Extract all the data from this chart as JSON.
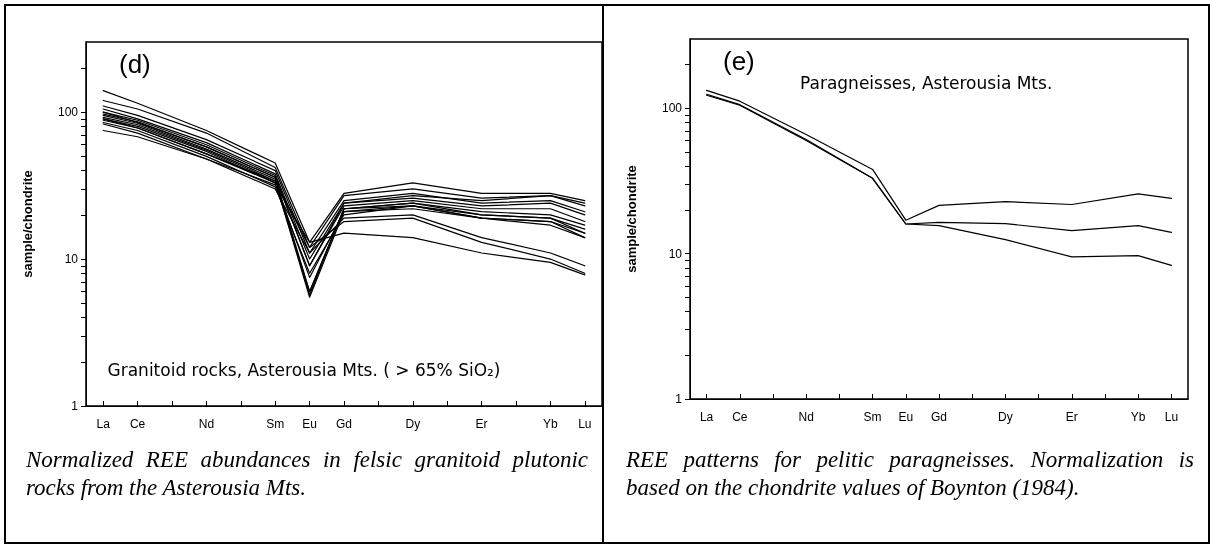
{
  "chart_data": [
    {
      "type": "line",
      "title": "(d)",
      "ylabel": "sample/chondrite",
      "annotations": [
        "Granitoid rocks, Asterousia Mts. ( > 65% SiO₂)",
        "Normalized REE abundances in felsic granitoid plutonic rocks from the Asterousia Mts."
      ],
      "categories": [
        "La",
        "Ce",
        null,
        "Nd",
        null,
        "Sm",
        "Eu",
        "Gd",
        null,
        "Dy",
        null,
        "Er",
        null,
        "Yb",
        "Lu"
      ],
      "ylim": [
        1,
        300
      ],
      "log": true,
      "yticks": [
        1,
        {
          "value": 2,
          "label": null
        },
        {
          "value": 3,
          "label": null
        },
        {
          "value": 4,
          "label": null
        },
        {
          "value": 5,
          "label": null
        },
        {
          "value": 6,
          "label": null
        },
        {
          "value": 7,
          "label": null
        },
        {
          "value": 8,
          "label": null
        },
        {
          "value": 9,
          "label": null
        },
        10,
        {
          "value": 20,
          "label": null
        },
        {
          "value": 30,
          "label": null
        },
        {
          "value": 40,
          "label": null
        },
        {
          "value": 50,
          "label": null
        },
        {
          "value": 60,
          "label": null
        },
        {
          "value": 70,
          "label": null
        },
        {
          "value": 80,
          "label": null
        },
        {
          "value": 90,
          "label": null
        },
        100,
        {
          "value": 200,
          "label": null
        }
      ],
      "grid": false,
      "marker": "none",
      "line_style": "solid",
      "series": [
        {
          "color": "#000000",
          "values": [
            140,
            115,
            null,
            75,
            null,
            45,
            13,
            28,
            null,
            33,
            null,
            28,
            null,
            28,
            25
          ]
        },
        {
          "color": "#000000",
          "values": [
            120,
            105,
            null,
            72,
            null,
            42,
            12,
            27,
            null,
            30,
            null,
            26,
            null,
            27,
            23
          ]
        },
        {
          "color": "#000000",
          "values": [
            110,
            95,
            null,
            65,
            null,
            40,
            11,
            25,
            null,
            28,
            null,
            24,
            null,
            25,
            21
          ]
        },
        {
          "color": "#000000",
          "values": [
            105,
            90,
            null,
            62,
            null,
            38,
            10,
            24,
            null,
            26,
            null,
            23,
            null,
            24,
            20
          ]
        },
        {
          "color": "#000000",
          "values": [
            100,
            88,
            null,
            60,
            null,
            37,
            9,
            23,
            null,
            25,
            null,
            22,
            null,
            22,
            18
          ]
        },
        {
          "color": "#000000",
          "values": [
            97,
            86,
            null,
            58,
            null,
            36,
            6,
            22,
            null,
            24,
            null,
            21,
            null,
            20,
            17
          ]
        },
        {
          "color": "#000000",
          "values": [
            95,
            84,
            null,
            56,
            null,
            35,
            5.7,
            22,
            null,
            23,
            null,
            20,
            null,
            19,
            16
          ]
        },
        {
          "color": "#000000",
          "values": [
            92,
            82,
            null,
            55,
            null,
            34,
            5.5,
            21,
            null,
            23,
            null,
            19,
            null,
            18,
            15
          ]
        },
        {
          "color": "#000000",
          "values": [
            90,
            80,
            null,
            54,
            null,
            33,
            6,
            22,
            null,
            24,
            null,
            20,
            null,
            19,
            15
          ]
        },
        {
          "color": "#000000",
          "values": [
            88,
            78,
            null,
            52,
            null,
            33,
            7.5,
            21,
            null,
            22,
            null,
            19,
            null,
            18,
            14
          ]
        },
        {
          "color": "#000000",
          "values": [
            85,
            75,
            null,
            50,
            null,
            31,
            8,
            20,
            null,
            23,
            null,
            19,
            null,
            17,
            14
          ]
        },
        {
          "color": "#000000",
          "values": [
            83,
            72,
            null,
            48,
            null,
            30,
            11,
            19,
            null,
            20,
            null,
            14,
            null,
            11,
            9
          ]
        },
        {
          "color": "#000000",
          "values": [
            90,
            78,
            null,
            52,
            null,
            34,
            12,
            18,
            null,
            19,
            null,
            13,
            null,
            10,
            8
          ]
        },
        {
          "color": "#000000",
          "values": [
            75,
            68,
            null,
            48,
            null,
            32,
            13,
            15,
            null,
            14,
            null,
            11,
            null,
            9.5,
            7.8
          ]
        },
        {
          "color": "#000000",
          "values": [
            100,
            85,
            null,
            58,
            null,
            36,
            9,
            24,
            null,
            27,
            null,
            25,
            null,
            27,
            24
          ]
        }
      ]
    },
    {
      "type": "line",
      "title": "(e)",
      "ylabel": "sample/chondrite",
      "annotations": [
        "Paragneisses, Asterousia Mts.",
        "REE patterns for pelitic paragneisses. Normalization is based on the chondrite values of Boynton (1984)."
      ],
      "categories": [
        "La",
        "Ce",
        null,
        "Nd",
        null,
        "Sm",
        "Eu",
        "Gd",
        null,
        "Dy",
        null,
        "Er",
        null,
        "Yb",
        "Lu"
      ],
      "ylim": [
        1,
        300
      ],
      "log": true,
      "yticks": [
        1,
        {
          "value": 2,
          "label": null
        },
        {
          "value": 3,
          "label": null
        },
        {
          "value": 4,
          "label": null
        },
        {
          "value": 5,
          "label": null
        },
        {
          "value": 6,
          "label": null
        },
        {
          "value": 7,
          "label": null
        },
        {
          "value": 8,
          "label": null
        },
        {
          "value": 9,
          "label": null
        },
        10,
        {
          "value": 20,
          "label": null
        },
        {
          "value": 30,
          "label": null
        },
        {
          "value": 40,
          "label": null
        },
        {
          "value": 50,
          "label": null
        },
        {
          "value": 60,
          "label": null
        },
        {
          "value": 70,
          "label": null
        },
        {
          "value": 80,
          "label": null
        },
        {
          "value": 90,
          "label": null
        },
        100,
        {
          "value": 200,
          "label": null
        }
      ],
      "grid": false,
      "marker": "none",
      "line_style": "solid",
      "series": [
        {
          "color": "#000000",
          "values": [
            133,
            112,
            null,
            66,
            null,
            38,
            17,
            21.5,
            null,
            22.8,
            null,
            21.8,
            null,
            25.8,
            24
          ]
        },
        {
          "color": "#000000",
          "values": [
            123,
            105,
            null,
            60,
            null,
            33,
            16,
            16.4,
            null,
            16.1,
            null,
            14.4,
            null,
            15.6,
            14
          ]
        },
        {
          "color": "#000000",
          "values": [
            125,
            106,
            null,
            61,
            null,
            33,
            16,
            15.6,
            null,
            12.5,
            null,
            9.5,
            null,
            9.7,
            8.3
          ]
        }
      ]
    }
  ]
}
